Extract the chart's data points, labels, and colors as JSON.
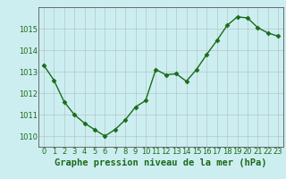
{
  "x": [
    0,
    1,
    2,
    3,
    4,
    5,
    6,
    7,
    8,
    9,
    10,
    11,
    12,
    13,
    14,
    15,
    16,
    17,
    18,
    19,
    20,
    21,
    22,
    23
  ],
  "y": [
    1013.3,
    1012.6,
    1011.6,
    1011.0,
    1010.6,
    1010.3,
    1010.0,
    1010.3,
    1010.75,
    1011.35,
    1011.65,
    1013.1,
    1012.85,
    1012.9,
    1012.55,
    1013.1,
    1013.8,
    1014.45,
    1015.15,
    1015.55,
    1015.5,
    1015.05,
    1014.8,
    1014.65
  ],
  "line_color": "#1a6b1a",
  "marker": "D",
  "marker_size": 2.5,
  "bg_color": "#cdeef0",
  "grid_color": "#b0c8c8",
  "xlabel": "Graphe pression niveau de la mer (hPa)",
  "ylim": [
    1009.5,
    1016.0
  ],
  "yticks": [
    1010,
    1011,
    1012,
    1013,
    1014,
    1015
  ],
  "xticks": [
    0,
    1,
    2,
    3,
    4,
    5,
    6,
    7,
    8,
    9,
    10,
    11,
    12,
    13,
    14,
    15,
    16,
    17,
    18,
    19,
    20,
    21,
    22,
    23
  ],
  "xlabel_fontsize": 7.5,
  "tick_fontsize": 6.0,
  "xlabel_color": "#1a6b1a",
  "tick_color": "#1a6b1a",
  "spine_color": "#555555",
  "linewidth": 1.0
}
